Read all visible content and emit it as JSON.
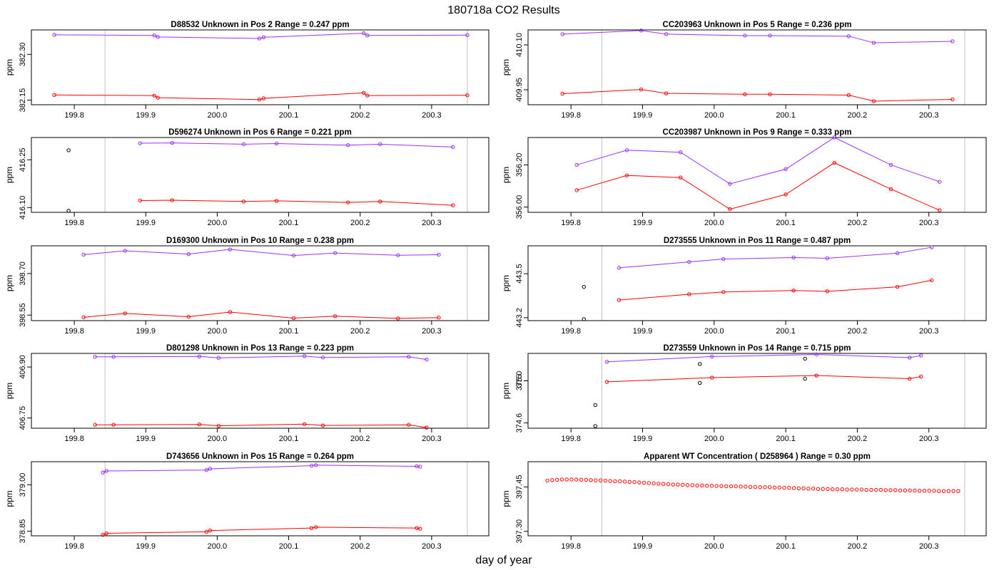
{
  "figure": {
    "title": "180718a  CO2 Results",
    "xlabel": "day of year",
    "ylabel": "ppm"
  },
  "colors": {
    "upper": "#9b30ff",
    "lower": "#ff0000",
    "flagged": "#000000",
    "refline": "#c0c0c0",
    "axis": "#000000"
  },
  "chart_data": [
    {
      "type": "line",
      "title": "D88532    Unknown in Pos 2         Range =  0.247 ppm",
      "xlim": [
        199.74,
        200.38
      ],
      "ylim": [
        382.135,
        382.38
      ],
      "xticks": [
        "199.8",
        "199.9",
        "200.0",
        "200.1",
        "200.2",
        "200.3"
      ],
      "yticks": [
        "382.15",
        "382.30"
      ],
      "vlines": [
        199.843,
        200.35
      ],
      "series": [
        {
          "name": "upper",
          "color": "#9b30ff",
          "x": [
            199.772,
            199.912,
            199.917,
            200.059,
            200.065,
            200.205,
            200.21,
            200.35
          ],
          "y": [
            382.364,
            382.362,
            382.357,
            382.352,
            382.356,
            382.369,
            382.362,
            382.363
          ]
        },
        {
          "name": "lower",
          "color": "#ff0000",
          "x": [
            199.772,
            199.912,
            199.917,
            200.059,
            200.065,
            200.205,
            200.21,
            200.35
          ],
          "y": [
            382.167,
            382.165,
            382.158,
            382.152,
            382.156,
            382.174,
            382.165,
            382.166
          ]
        }
      ],
      "flagged": []
    },
    {
      "type": "line",
      "title": "CC203963    Unknown in Pos 5         Range =  0.236 ppm",
      "xlim": [
        199.74,
        200.38
      ],
      "ylim": [
        409.9,
        410.15
      ],
      "xticks": [
        "199.8",
        "199.9",
        "200.0",
        "200.1",
        "200.2",
        "200.3"
      ],
      "yticks": [
        "409.95",
        "410.10"
      ],
      "vlines": [
        199.843,
        200.35
      ],
      "series": [
        {
          "name": "upper",
          "color": "#9b30ff",
          "x": [
            199.788,
            199.898,
            199.933,
            200.043,
            200.078,
            200.188,
            200.223,
            200.333
          ],
          "y": [
            410.136,
            410.148,
            410.136,
            410.131,
            410.131,
            410.129,
            410.107,
            410.112
          ]
        },
        {
          "name": "lower",
          "color": "#ff0000",
          "x": [
            199.788,
            199.898,
            199.933,
            200.043,
            200.078,
            200.188,
            200.223,
            200.333
          ],
          "y": [
            409.937,
            409.951,
            409.938,
            409.935,
            409.935,
            409.932,
            409.912,
            409.918
          ]
        }
      ],
      "flagged": []
    },
    {
      "type": "line",
      "title": "D596274    Unknown in Pos 6         Range =  0.221 ppm",
      "xlim": [
        199.74,
        200.38
      ],
      "ylim": [
        416.085,
        416.32
      ],
      "xticks": [
        "199.8",
        "199.9",
        "200.0",
        "200.1",
        "200.2",
        "200.3"
      ],
      "yticks": [
        "416.10",
        "416.25"
      ],
      "vlines": [
        199.843,
        200.35
      ],
      "series": [
        {
          "name": "upper",
          "color": "#9b30ff",
          "x": [
            199.892,
            199.937,
            200.037,
            200.083,
            200.183,
            200.228,
            200.33
          ],
          "y": [
            416.302,
            416.303,
            416.299,
            416.301,
            416.296,
            416.299,
            416.29
          ]
        },
        {
          "name": "lower",
          "color": "#ff0000",
          "x": [
            199.892,
            199.937,
            200.037,
            200.083,
            200.183,
            200.228,
            200.33
          ],
          "y": [
            416.122,
            416.123,
            416.119,
            416.121,
            416.116,
            416.119,
            416.107
          ]
        }
      ],
      "flagged": [
        {
          "x": 199.792,
          "y": 416.28
        },
        {
          "x": 199.792,
          "y": 416.09
        }
      ]
    },
    {
      "type": "line",
      "title": "CC203987    Unknown in Pos 9         Range =  0.333 ppm",
      "xlim": [
        199.74,
        200.38
      ],
      "ylim": [
        355.975,
        356.33
      ],
      "xticks": [
        "199.8",
        "199.9",
        "200.0",
        "200.1",
        "200.2",
        "200.3"
      ],
      "yticks": [
        "356.00",
        "356.20"
      ],
      "vlines": [
        199.843,
        200.35
      ],
      "series": [
        {
          "name": "upper",
          "color": "#9b30ff",
          "x": [
            199.808,
            199.878,
            199.953,
            200.022,
            200.1,
            200.168,
            200.247,
            200.315
          ],
          "y": [
            356.2,
            356.27,
            356.26,
            356.11,
            356.18,
            356.33,
            356.2,
            356.12
          ]
        },
        {
          "name": "lower",
          "color": "#ff0000",
          "x": [
            199.808,
            199.878,
            199.953,
            200.022,
            200.1,
            200.168,
            200.247,
            200.315
          ],
          "y": [
            356.08,
            356.15,
            356.14,
            355.99,
            356.06,
            356.21,
            356.085,
            355.985
          ]
        }
      ],
      "flagged": []
    },
    {
      "type": "line",
      "title": "D169300    Unknown in Pos 10         Range =  0.238 ppm",
      "xlim": [
        199.74,
        200.38
      ],
      "ylim": [
        398.53,
        398.8
      ],
      "xticks": [
        "199.8",
        "199.9",
        "200.0",
        "200.1",
        "200.2",
        "200.3"
      ],
      "yticks": [
        "398.55",
        "398.70"
      ],
      "vlines": [
        199.843,
        200.35
      ],
      "series": [
        {
          "name": "upper",
          "color": "#9b30ff",
          "x": [
            199.813,
            199.871,
            199.96,
            200.018,
            200.107,
            200.165,
            200.253,
            200.31
          ],
          "y": [
            398.768,
            398.782,
            398.77,
            398.787,
            398.765,
            398.774,
            398.766,
            398.768
          ]
        },
        {
          "name": "lower",
          "color": "#ff0000",
          "x": [
            199.813,
            199.871,
            199.96,
            200.018,
            200.107,
            200.165,
            200.253,
            200.31
          ],
          "y": [
            398.542,
            398.556,
            398.544,
            398.561,
            398.539,
            398.546,
            398.538,
            398.541
          ]
        }
      ],
      "flagged": []
    },
    {
      "type": "line",
      "title": "D273555    Unknown in Pos 11         Range =  0.487 ppm",
      "xlim": [
        199.74,
        200.38
      ],
      "ylim": [
        443.18,
        443.69
      ],
      "xticks": [
        "199.8",
        "199.9",
        "200.0",
        "200.1",
        "200.2",
        "200.3"
      ],
      "yticks": [
        "443.2",
        "443.5"
      ],
      "vlines": [
        199.843,
        200.35
      ],
      "series": [
        {
          "name": "upper",
          "color": "#9b30ff",
          "x": [
            199.867,
            199.965,
            200.013,
            200.111,
            200.158,
            200.256,
            200.304
          ],
          "y": [
            443.54,
            443.58,
            443.6,
            443.61,
            443.605,
            443.64,
            443.68
          ]
        },
        {
          "name": "lower",
          "color": "#ff0000",
          "x": [
            199.867,
            199.965,
            200.013,
            200.111,
            200.158,
            200.256,
            200.304
          ],
          "y": [
            443.32,
            443.36,
            443.375,
            443.385,
            443.38,
            443.41,
            443.455
          ]
        }
      ],
      "flagged": [
        {
          "x": 199.818,
          "y": 443.41
        },
        {
          "x": 199.818,
          "y": 443.19
        }
      ]
    },
    {
      "type": "line",
      "title": "D801298    Unknown in Pos 13         Range =  0.223 ppm",
      "xlim": [
        199.74,
        200.38
      ],
      "ylim": [
        406.72,
        406.94
      ],
      "xticks": [
        "199.8",
        "199.9",
        "200.0",
        "200.1",
        "200.2",
        "200.3"
      ],
      "yticks": [
        "406.75",
        "406.90"
      ],
      "vlines": [
        199.843,
        200.35
      ],
      "series": [
        {
          "name": "upper",
          "color": "#9b30ff",
          "x": [
            199.829,
            199.855,
            199.975,
            200.002,
            200.122,
            200.148,
            200.268,
            200.293
          ],
          "y": [
            406.93,
            406.93,
            406.931,
            406.927,
            406.932,
            406.928,
            406.93,
            406.922
          ]
        },
        {
          "name": "lower",
          "color": "#ff0000",
          "x": [
            199.829,
            199.855,
            199.975,
            200.002,
            200.122,
            200.148,
            200.268,
            200.293
          ],
          "y": [
            406.73,
            406.73,
            406.731,
            406.727,
            406.732,
            406.728,
            406.73,
            406.722
          ]
        }
      ],
      "flagged": []
    },
    {
      "type": "line",
      "title": "D273559    Unknown in Pos 14         Range =  0.715 ppm",
      "xlim": [
        199.74,
        200.38
      ],
      "ylim": [
        374.55,
        375.26
      ],
      "xticks": [
        "199.8",
        "199.9",
        "200.0",
        "200.1",
        "200.2",
        "200.3"
      ],
      "yticks": [
        "374.6",
        "375.0",
        "375"
      ],
      "vlines": [
        199.843,
        200.35
      ],
      "series": [
        {
          "name": "upper",
          "color": "#9b30ff",
          "x": [
            199.85,
            199.997,
            200.143,
            200.273,
            200.289
          ],
          "y": [
            375.18,
            375.23,
            375.25,
            375.22,
            375.24
          ]
        },
        {
          "name": "lower",
          "color": "#ff0000",
          "x": [
            199.85,
            199.997,
            200.143,
            200.273,
            200.289
          ],
          "y": [
            374.99,
            375.03,
            375.05,
            375.02,
            375.04
          ]
        }
      ],
      "flagged": [
        {
          "x": 199.834,
          "y": 374.77
        },
        {
          "x": 199.834,
          "y": 374.57
        },
        {
          "x": 199.98,
          "y": 375.16
        },
        {
          "x": 199.98,
          "y": 374.98
        },
        {
          "x": 200.127,
          "y": 375.21
        },
        {
          "x": 200.127,
          "y": 375.02
        }
      ]
    },
    {
      "type": "line",
      "title": "D743656    Unknown in Pos 15         Range =  0.264 ppm",
      "xlim": [
        199.74,
        200.38
      ],
      "ylim": [
        378.835,
        379.075
      ],
      "xticks": [
        "199.8",
        "199.9",
        "200.0",
        "200.1",
        "200.2",
        "200.3"
      ],
      "yticks": [
        "378.85",
        "379.00"
      ],
      "vlines": [
        199.843,
        200.35
      ],
      "series": [
        {
          "name": "upper",
          "color": "#9b30ff",
          "x": [
            199.84,
            199.845,
            199.985,
            199.99,
            200.132,
            200.138,
            200.279,
            200.284
          ],
          "y": [
            379.04,
            379.045,
            379.048,
            379.052,
            379.062,
            379.064,
            379.06,
            379.059
          ]
        },
        {
          "name": "lower",
          "color": "#ff0000",
          "x": [
            199.84,
            199.845,
            199.985,
            199.99,
            200.132,
            200.138,
            200.279,
            200.284
          ],
          "y": [
            378.838,
            378.843,
            378.848,
            378.852,
            378.86,
            378.863,
            378.86,
            378.858
          ]
        }
      ],
      "flagged": []
    },
    {
      "type": "scatter",
      "title": "Apparent WT Concentration ( D258964 )          Range = 0.30 ppm",
      "xlim": [
        199.74,
        200.38
      ],
      "ylim": [
        397.285,
        397.535
      ],
      "xticks": [
        "199.8",
        "199.9",
        "200.0",
        "200.1",
        "200.2",
        "200.3"
      ],
      "yticks": [
        "397.30",
        "397.45"
      ],
      "vlines": [
        199.843,
        200.35
      ],
      "series": [
        {
          "name": "WT",
          "color": "#ff0000",
          "line": false,
          "x_start": 199.767,
          "x_end": 200.341,
          "n": 86,
          "y": [
            397.471,
            397.473,
            397.474,
            397.475,
            397.475,
            397.475,
            397.475,
            397.474,
            397.474,
            397.473,
            397.472,
            397.472,
            397.471,
            397.47,
            397.469,
            397.469,
            397.468,
            397.467,
            397.466,
            397.465,
            397.464,
            397.463,
            397.462,
            397.461,
            397.46,
            397.459,
            397.458,
            397.458,
            397.457,
            397.456,
            397.456,
            397.455,
            397.455,
            397.454,
            397.454,
            397.453,
            397.453,
            397.452,
            397.452,
            397.452,
            397.451,
            397.451,
            397.45,
            397.45,
            397.449,
            397.449,
            397.449,
            397.448,
            397.448,
            397.447,
            397.447,
            397.446,
            397.445,
            397.445,
            397.444,
            397.444,
            397.443,
            397.443,
            397.443,
            397.442,
            397.442,
            397.442,
            397.441,
            397.441,
            397.441,
            397.441,
            397.44,
            397.44,
            397.44,
            397.44,
            397.439,
            397.439,
            397.439,
            397.438,
            397.438,
            397.438,
            397.438,
            397.437,
            397.437,
            397.437,
            397.437,
            397.436,
            397.436,
            397.436,
            397.436,
            397.436
          ]
        }
      ],
      "flagged": []
    }
  ]
}
